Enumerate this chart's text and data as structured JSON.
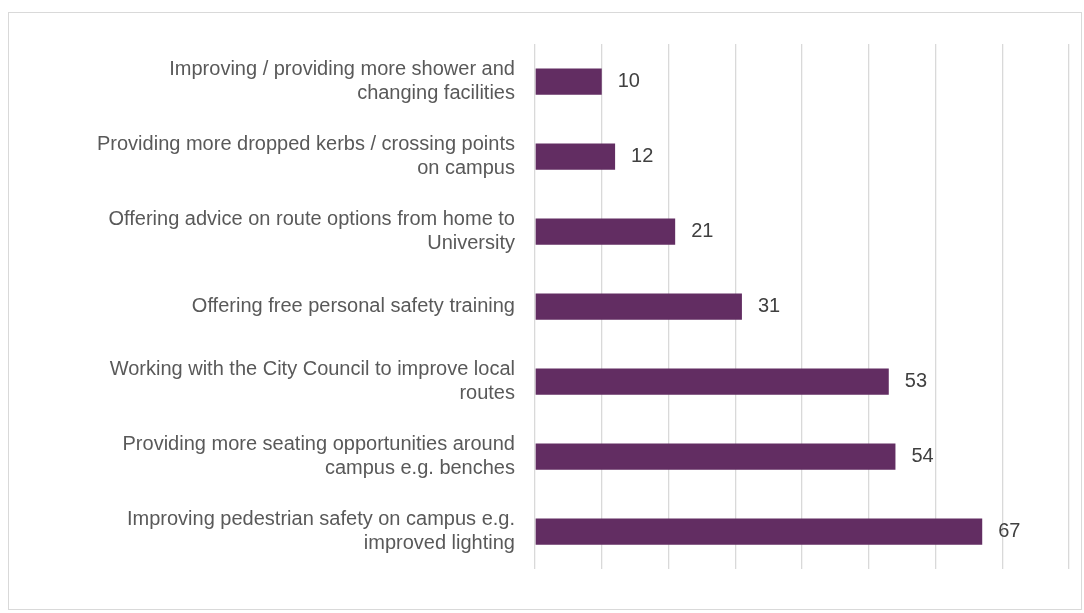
{
  "chart_data": {
    "type": "bar",
    "orientation": "horizontal",
    "categories": [
      "Improving / providing more shower and changing facilities",
      "Providing more dropped kerbs / crossing points on campus",
      "Offering advice on route options from home to University",
      "Offering free personal safety training",
      "Working with the City Council to improve local routes",
      "Providing more seating opportunities around campus e.g. benches",
      "Improving pedestrian safety on campus e.g. improved lighting"
    ],
    "values": [
      10,
      12,
      21,
      31,
      53,
      54,
      67
    ],
    "color": "#622d62",
    "xlim": [
      0,
      80
    ],
    "xticks": [
      {
        "value": 0,
        "label": null
      },
      {
        "value": 10,
        "label": null
      },
      {
        "value": 20,
        "label": null
      },
      {
        "value": 30,
        "label": null
      },
      {
        "value": 40,
        "label": null
      },
      {
        "value": 50,
        "label": null
      },
      {
        "value": 60,
        "label": null
      },
      {
        "value": 70,
        "label": null
      },
      {
        "value": 80,
        "label": null
      }
    ],
    "grid": "x",
    "tick_labels": "y",
    "data_labels": true,
    "legend": false
  }
}
